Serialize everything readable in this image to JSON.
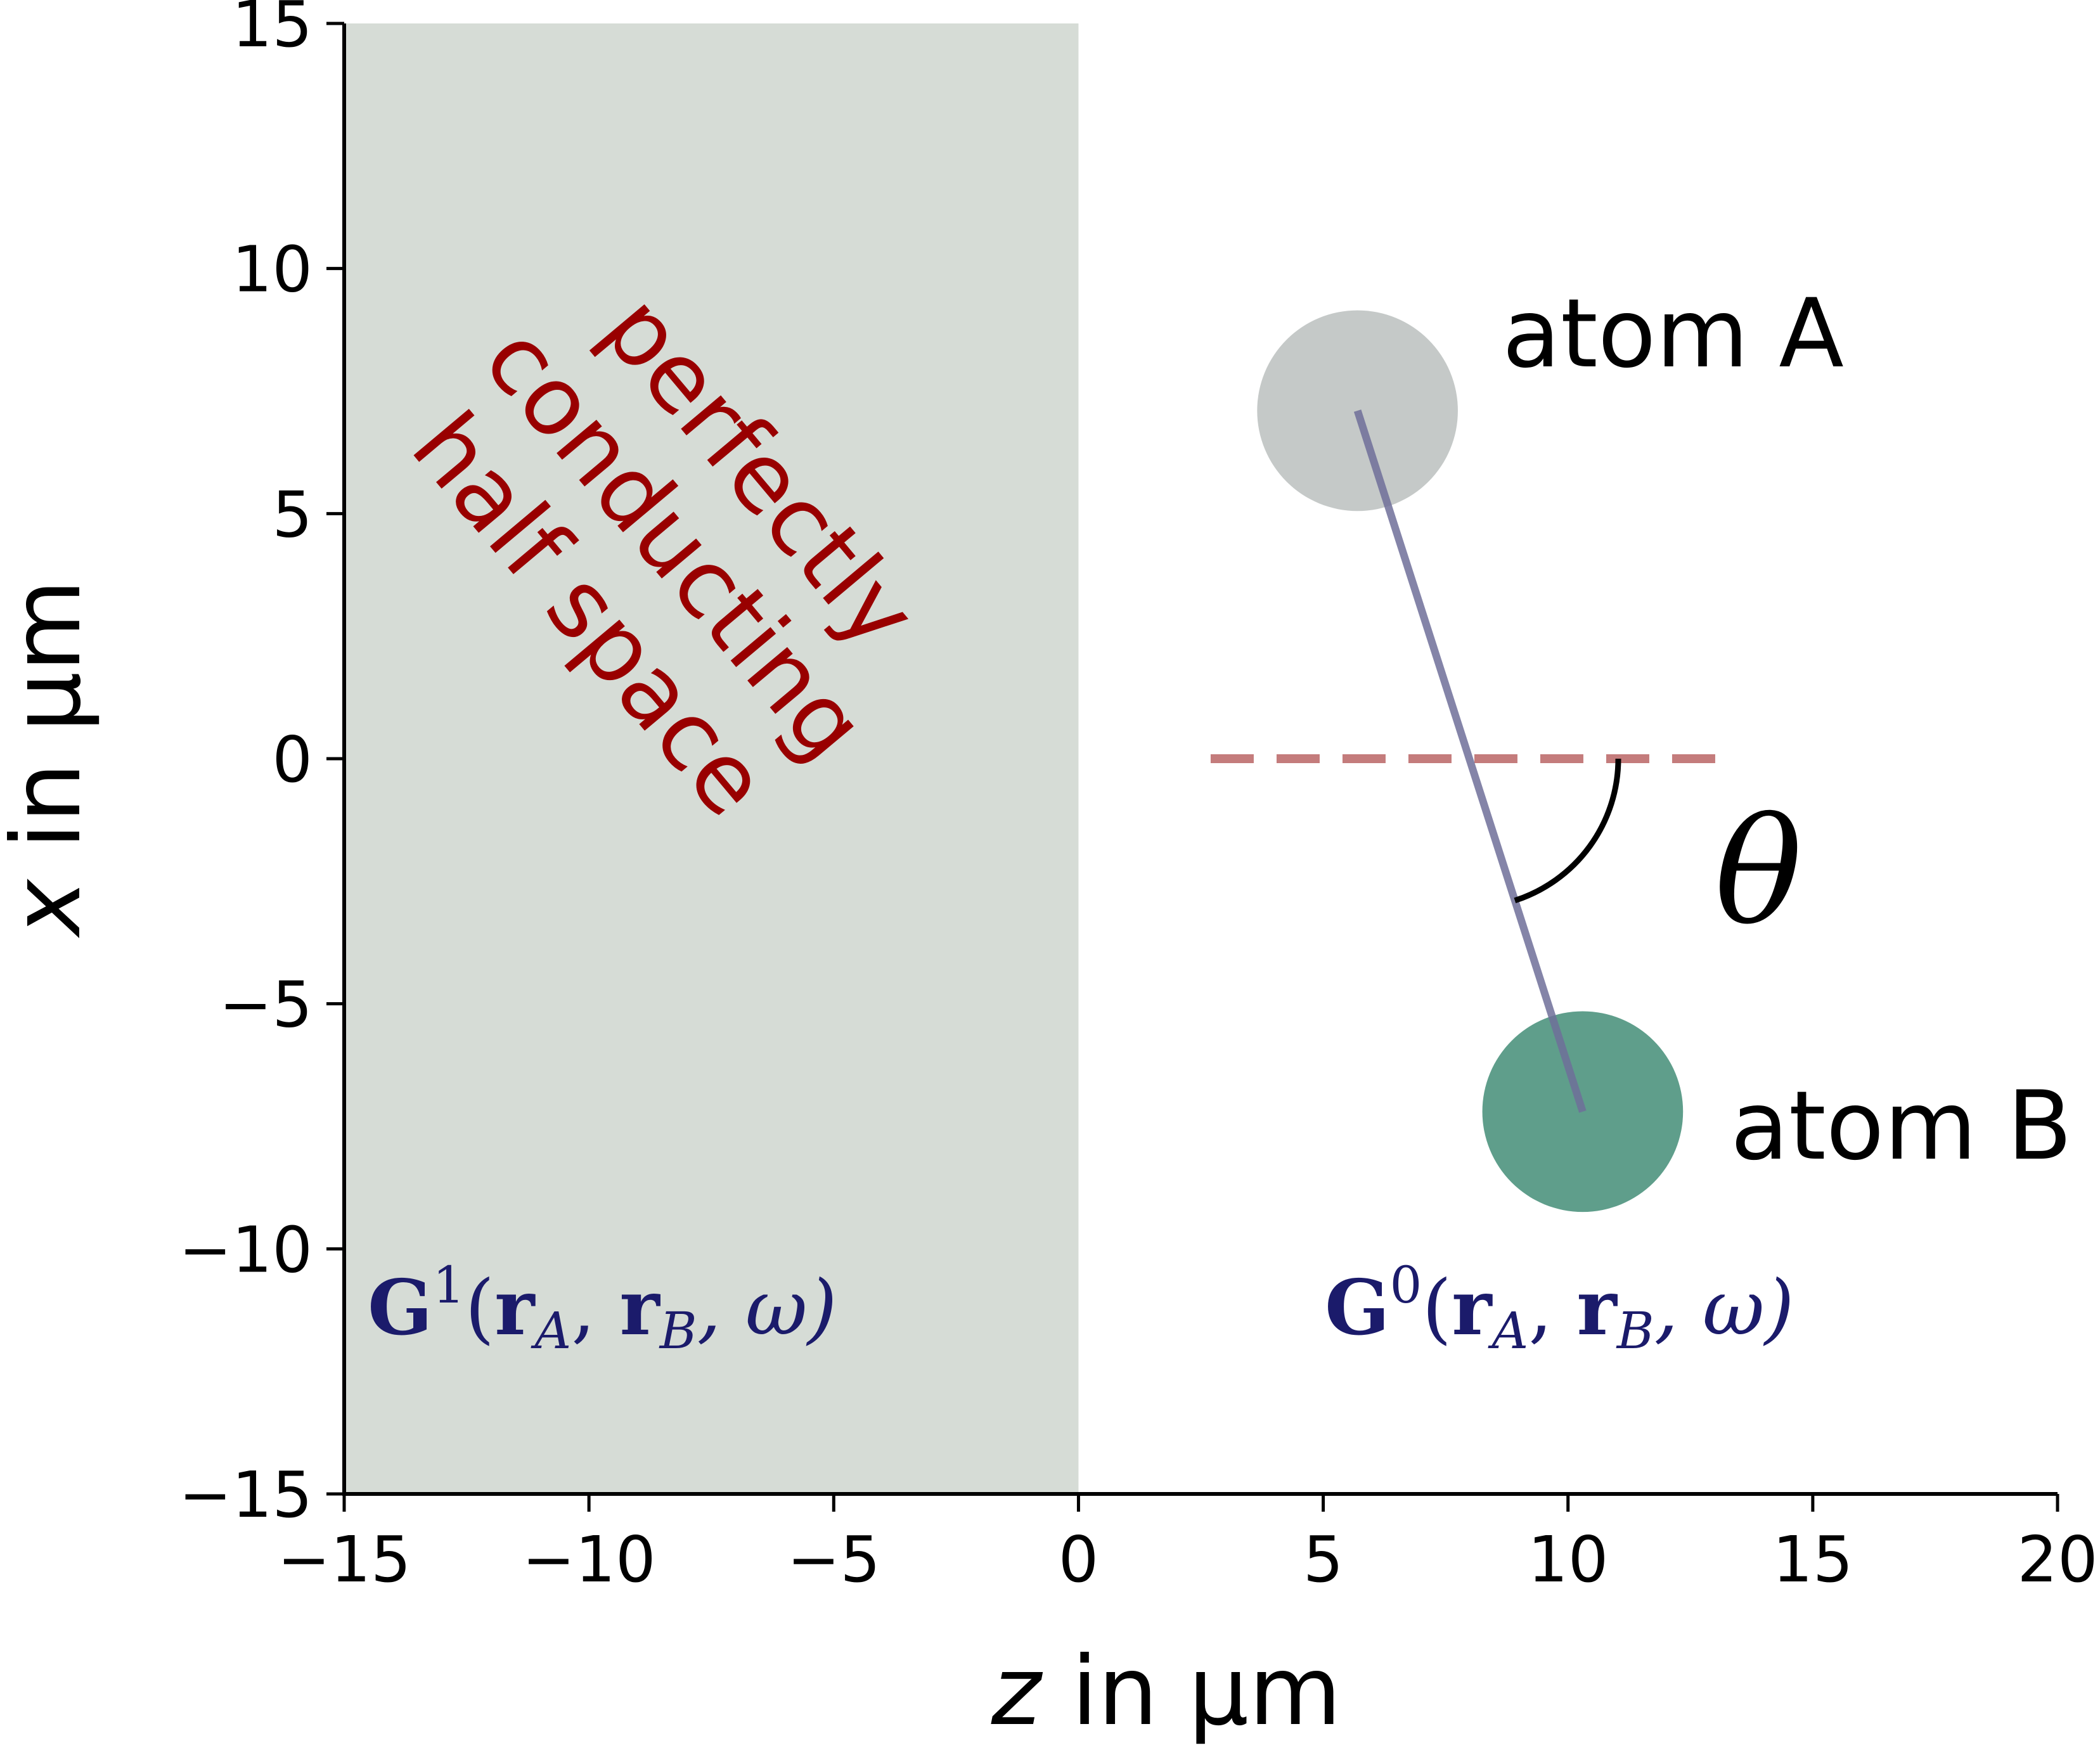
{
  "chart_data": {
    "type": "diagram",
    "xlabel_var": "z",
    "xlabel_unit": "in μm",
    "ylabel_var": "x",
    "ylabel_unit": "in μm",
    "xlim": [
      -15,
      20
    ],
    "ylim": [
      -15,
      15
    ],
    "xticks": [
      -15,
      -10,
      -5,
      0,
      5,
      10,
      15,
      20
    ],
    "yticks": [
      -15,
      -10,
      -5,
      0,
      5,
      10,
      15
    ],
    "xtick_labels": [
      "−15",
      "−10",
      "−5",
      "0",
      "5",
      "10",
      "15",
      "20"
    ],
    "ytick_labels": [
      "−15",
      "−10",
      "−5",
      "0",
      "5",
      "10",
      "15"
    ],
    "half_space": {
      "z_from": -15,
      "z_to": 0,
      "color": "#d6dcd6"
    },
    "half_space_label": [
      "perfectly",
      "conducting",
      "half space"
    ],
    "atoms": [
      {
        "name": "atom A",
        "z": 5.7,
        "x": 7.1,
        "radius": 2.05,
        "color": "#c5c9c8"
      },
      {
        "name": "atom B",
        "z": 10.3,
        "x": -7.2,
        "radius": 2.05,
        "color": "#5f9e8b"
      }
    ],
    "reference_line": {
      "x": 0,
      "z_from": 2.7,
      "z_to": 13.3,
      "color": "#c47c7c"
    },
    "connector_color": "#6e6e99",
    "angle_label": "θ",
    "green_labels": [
      {
        "G": "G",
        "sup": "1",
        "args": "(",
        "r1": "r",
        "s1": "A",
        "r2": "r",
        "s2": "B",
        "tail": ", ω)"
      },
      {
        "G": "G",
        "sup": "0",
        "args": "(",
        "r1": "r",
        "s1": "A",
        "r2": "r",
        "s2": "B",
        "tail": ", ω)"
      }
    ]
  }
}
